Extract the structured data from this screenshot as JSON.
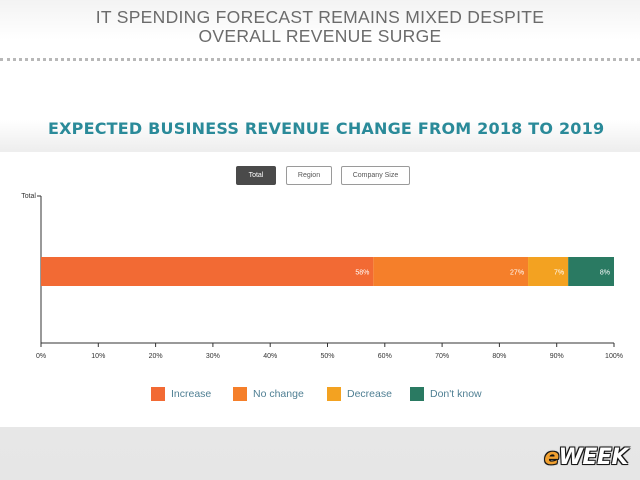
{
  "header": {
    "title_line1": "IT SPENDING FORECAST REMAINS MIXED DESPITE",
    "title_line2": "OVERALL REVENUE SURGE"
  },
  "filters": {
    "total_label": "Total",
    "region_label": "Region",
    "company_size_label": "Company Size",
    "active": "Total"
  },
  "brand": {
    "logo_e": "e",
    "logo_rest": "WEEK"
  },
  "chart_data": {
    "type": "bar",
    "orientation": "horizontal",
    "stacked": true,
    "title": "EXPECTED BUSINESS REVENUE CHANGE FROM 2018 TO 2019",
    "categories": [
      "Total"
    ],
    "series": [
      {
        "name": "Increase",
        "values": [
          58
        ],
        "label": "58%",
        "color": "#f26a34"
      },
      {
        "name": "No change",
        "values": [
          27
        ],
        "label": "27%",
        "color": "#f57f2a"
      },
      {
        "name": "Decrease",
        "values": [
          7
        ],
        "label": "7%",
        "color": "#f3a221"
      },
      {
        "name": "Don't know",
        "values": [
          8
        ],
        "label": "8%",
        "color": "#2a7a62"
      }
    ],
    "xlim": [
      0,
      100
    ],
    "xticks": [
      "0%",
      "10%",
      "20%",
      "30%",
      "40%",
      "50%",
      "60%",
      "70%",
      "80%",
      "90%",
      "100%"
    ],
    "grid": false,
    "legend_position": "bottom"
  }
}
